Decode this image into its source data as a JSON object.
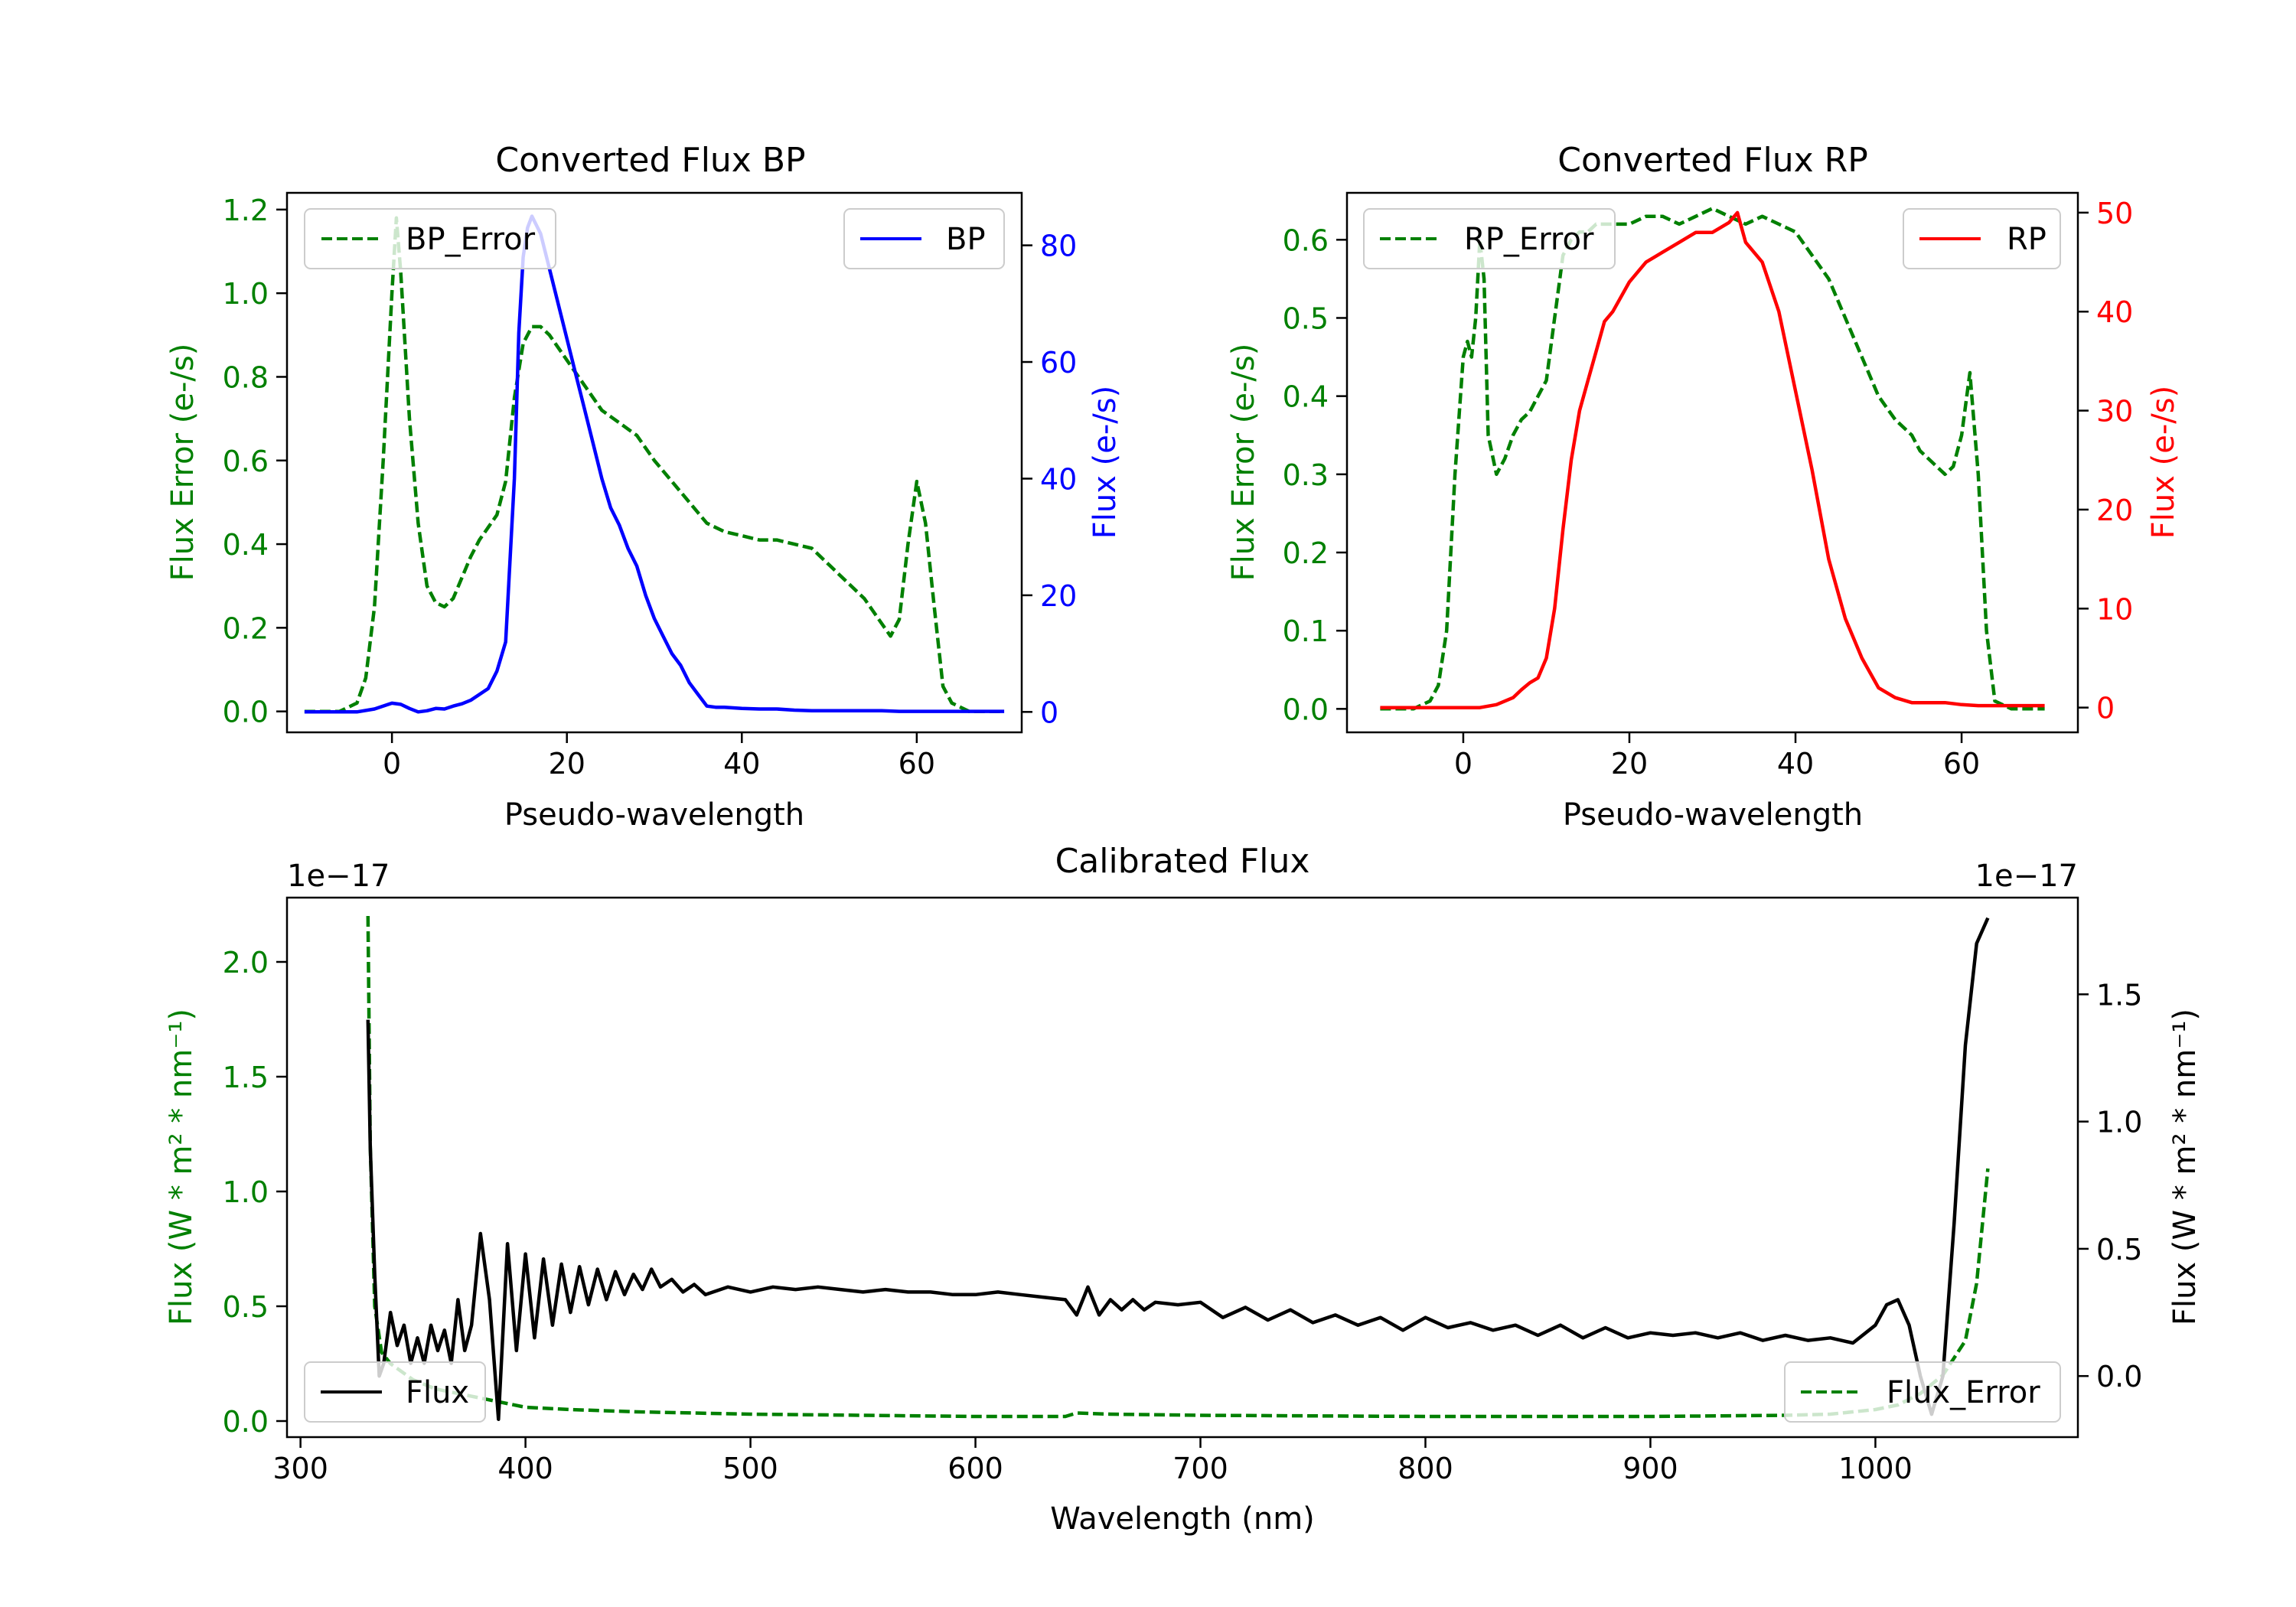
{
  "chart_data": [
    {
      "id": "bp",
      "type": "line",
      "title": "Converted Flux BP",
      "xlabel": "Pseudo-wavelength",
      "ylabel_left": "Flux Error (e-/s)",
      "ylabel_right": "Flux (e-/s)",
      "xlim": [
        -12,
        72
      ],
      "ylim_left": [
        -0.05,
        1.24
      ],
      "ylim_right": [
        -3.5,
        89
      ],
      "xticks": [
        0,
        20,
        40,
        60
      ],
      "yticks_left": [
        "0.0",
        "0.2",
        "0.4",
        "0.6",
        "0.8",
        "1.0",
        "1.2"
      ],
      "yticks_right": [
        "0",
        "20",
        "40",
        "60",
        "80"
      ],
      "colors": {
        "error": "#008000",
        "flux": "#0000ff",
        "left_axis": "#008000",
        "right_axis": "#0000ff"
      },
      "legend_error": "BP_Error",
      "legend_flux": "BP",
      "series": [
        {
          "name": "BP_Error",
          "axis": "left",
          "style": "dashed",
          "color": "#008000",
          "x": [
            -10,
            -8,
            -6,
            -4,
            -3,
            -2,
            -1,
            0,
            0.5,
            1,
            2,
            3,
            4,
            5,
            6,
            7,
            8,
            9,
            10,
            11,
            12,
            13,
            14,
            15,
            16,
            17,
            18,
            19,
            20,
            22,
            24,
            26,
            28,
            30,
            32,
            34,
            36,
            38,
            40,
            42,
            44,
            46,
            48,
            50,
            52,
            54,
            55,
            56,
            57,
            58,
            59,
            60,
            61,
            62,
            63,
            64,
            66,
            68,
            70
          ],
          "y": [
            0,
            0,
            0,
            0.02,
            0.08,
            0.25,
            0.6,
            1.0,
            1.18,
            1.05,
            0.7,
            0.45,
            0.3,
            0.26,
            0.25,
            0.27,
            0.32,
            0.37,
            0.41,
            0.44,
            0.47,
            0.55,
            0.75,
            0.88,
            0.92,
            0.92,
            0.9,
            0.87,
            0.84,
            0.78,
            0.72,
            0.69,
            0.66,
            0.6,
            0.55,
            0.5,
            0.45,
            0.43,
            0.42,
            0.41,
            0.41,
            0.4,
            0.39,
            0.35,
            0.31,
            0.27,
            0.24,
            0.21,
            0.18,
            0.22,
            0.4,
            0.55,
            0.45,
            0.25,
            0.06,
            0.02,
            0,
            0,
            0
          ]
        },
        {
          "name": "BP",
          "axis": "right",
          "style": "solid",
          "color": "#0000ff",
          "x": [
            -10,
            -8,
            -6,
            -4,
            -2,
            0,
            1,
            2,
            3,
            4,
            5,
            6,
            7,
            8,
            9,
            10,
            11,
            12,
            13,
            14,
            14.5,
            15,
            15.5,
            16,
            17,
            18,
            19,
            20,
            21,
            22,
            23,
            24,
            25,
            26,
            27,
            28,
            29,
            30,
            31,
            32,
            33,
            34,
            35,
            36,
            37,
            38,
            40,
            42,
            44,
            46,
            48,
            50,
            52,
            54,
            56,
            58,
            60,
            62,
            64,
            66,
            68,
            70
          ],
          "y": [
            0,
            0,
            0,
            0,
            0.5,
            1.5,
            1.3,
            0.6,
            0,
            0.2,
            0.6,
            0.5,
            1,
            1.4,
            2,
            3,
            4,
            7,
            12,
            40,
            65,
            78,
            83,
            85,
            82,
            76,
            70,
            64,
            58,
            52,
            46,
            40,
            35,
            32,
            28,
            25,
            20,
            16,
            13,
            10,
            8,
            5,
            3,
            1,
            0.8,
            0.8,
            0.6,
            0.5,
            0.5,
            0.3,
            0.2,
            0.2,
            0.2,
            0.2,
            0.2,
            0.1,
            0.1,
            0.1,
            0.1,
            0.1,
            0.1,
            0.1
          ]
        }
      ]
    },
    {
      "id": "rp",
      "type": "line",
      "title": "Converted Flux RP",
      "xlabel": "Pseudo-wavelength",
      "ylabel_left": "Flux Error (e-/s)",
      "ylabel_right": "Flux (e-/s)",
      "xlim": [
        -14,
        74
      ],
      "ylim_left": [
        -0.03,
        0.66
      ],
      "ylim_right": [
        -2.5,
        52
      ],
      "xticks": [
        0,
        20,
        40,
        60
      ],
      "yticks_left": [
        "0.0",
        "0.1",
        "0.2",
        "0.3",
        "0.4",
        "0.5",
        "0.6"
      ],
      "yticks_right": [
        "0",
        "10",
        "20",
        "30",
        "40",
        "50"
      ],
      "colors": {
        "error": "#008000",
        "flux": "#ff0000",
        "left_axis": "#008000",
        "right_axis": "#ff0000"
      },
      "legend_error": "RP_Error",
      "legend_flux": "RP",
      "series": [
        {
          "name": "RP_Error",
          "axis": "left",
          "style": "dashed",
          "color": "#008000",
          "x": [
            -10,
            -6,
            -4,
            -3,
            -2,
            -1,
            0,
            0.5,
            1,
            1.5,
            2,
            2.5,
            3,
            4,
            5,
            6,
            7,
            8,
            9,
            10,
            11,
            12,
            13,
            14,
            15,
            16,
            17,
            18,
            20,
            22,
            24,
            26,
            28,
            30,
            32,
            34,
            36,
            38,
            40,
            42,
            44,
            46,
            48,
            50,
            52,
            54,
            55,
            56,
            57,
            58,
            59,
            60,
            61,
            62,
            63,
            64,
            66,
            68,
            70
          ],
          "y": [
            0,
            0,
            0.01,
            0.03,
            0.1,
            0.3,
            0.45,
            0.47,
            0.45,
            0.5,
            0.6,
            0.55,
            0.35,
            0.3,
            0.32,
            0.35,
            0.37,
            0.38,
            0.4,
            0.42,
            0.5,
            0.58,
            0.6,
            0.61,
            0.61,
            0.62,
            0.62,
            0.62,
            0.62,
            0.63,
            0.63,
            0.62,
            0.63,
            0.64,
            0.63,
            0.62,
            0.63,
            0.62,
            0.61,
            0.58,
            0.55,
            0.5,
            0.45,
            0.4,
            0.37,
            0.35,
            0.33,
            0.32,
            0.31,
            0.3,
            0.31,
            0.35,
            0.43,
            0.3,
            0.1,
            0.01,
            0,
            0,
            0
          ]
        },
        {
          "name": "RP",
          "axis": "right",
          "style": "solid",
          "color": "#ff0000",
          "x": [
            -10,
            -6,
            -4,
            -2,
            0,
            2,
            4,
            6,
            7,
            8,
            9,
            10,
            11,
            12,
            13,
            14,
            15,
            16,
            17,
            18,
            20,
            22,
            24,
            26,
            28,
            30,
            32,
            33,
            34,
            36,
            38,
            40,
            42,
            44,
            46,
            48,
            50,
            52,
            54,
            56,
            58,
            60,
            62,
            64,
            66,
            68,
            70
          ],
          "y": [
            0,
            0,
            0,
            0,
            0,
            0,
            0.3,
            1,
            1.8,
            2.5,
            3,
            5,
            10,
            18,
            25,
            30,
            33,
            36,
            39,
            40,
            43,
            45,
            46,
            47,
            48,
            48,
            49,
            50,
            47,
            45,
            40,
            32,
            24,
            15,
            9,
            5,
            2,
            1,
            0.5,
            0.5,
            0.5,
            0.3,
            0.2,
            0.2,
            0.2,
            0.2,
            0.2
          ]
        }
      ]
    },
    {
      "id": "cal",
      "type": "line",
      "title": "Calibrated Flux",
      "xlabel": "Wavelength (nm)",
      "ylabel_left": "Flux (W * m² * nm⁻¹)",
      "ylabel_right": "Flux (W * m² * nm⁻¹)",
      "offset_left": "1e−17",
      "offset_right": "1e−17",
      "xlim": [
        294,
        1090
      ],
      "ylim_left": [
        -0.07,
        2.28
      ],
      "ylim_right": [
        -0.24,
        1.88
      ],
      "xticks": [
        300,
        400,
        500,
        600,
        700,
        800,
        900,
        1000
      ],
      "yticks_left": [
        "0.0",
        "0.5",
        "1.0",
        "1.5",
        "2.0"
      ],
      "yticks_right": [
        "0.0",
        "0.5",
        "1.0",
        "1.5"
      ],
      "colors": {
        "error": "#008000",
        "flux": "#000000",
        "left_axis": "#008000",
        "right_axis": "#000000"
      },
      "legend_error": "Flux_Error",
      "legend_flux": "Flux",
      "series": [
        {
          "name": "Flux_Error",
          "axis": "left",
          "style": "dashed",
          "color": "#008000",
          "x": [
            330,
            331,
            333,
            336,
            340,
            350,
            360,
            380,
            400,
            420,
            450,
            500,
            550,
            600,
            630,
            640,
            645,
            660,
            700,
            800,
            900,
            960,
            980,
            1000,
            1010,
            1020,
            1030,
            1040,
            1045,
            1050
          ],
          "y": [
            2.2,
            1.2,
            0.5,
            0.3,
            0.25,
            0.18,
            0.14,
            0.1,
            0.06,
            0.05,
            0.04,
            0.03,
            0.025,
            0.02,
            0.02,
            0.02,
            0.035,
            0.03,
            0.025,
            0.02,
            0.02,
            0.025,
            0.03,
            0.05,
            0.07,
            0.12,
            0.2,
            0.35,
            0.6,
            1.1
          ]
        },
        {
          "name": "Flux",
          "axis": "right",
          "style": "solid",
          "color": "#000000",
          "x": [
            330,
            331,
            333,
            335,
            337,
            340,
            343,
            346,
            349,
            352,
            355,
            358,
            361,
            364,
            367,
            370,
            373,
            376,
            380,
            384,
            388,
            392,
            396,
            400,
            404,
            408,
            412,
            416,
            420,
            424,
            428,
            432,
            436,
            440,
            444,
            448,
            452,
            456,
            460,
            465,
            470,
            475,
            480,
            490,
            500,
            510,
            520,
            530,
            540,
            550,
            560,
            570,
            580,
            590,
            600,
            610,
            620,
            630,
            640,
            645,
            650,
            655,
            660,
            665,
            670,
            675,
            680,
            690,
            700,
            710,
            720,
            730,
            740,
            750,
            760,
            770,
            780,
            790,
            800,
            810,
            820,
            830,
            840,
            850,
            860,
            870,
            880,
            890,
            900,
            910,
            920,
            930,
            940,
            950,
            960,
            970,
            980,
            990,
            1000,
            1005,
            1010,
            1015,
            1020,
            1025,
            1030,
            1035,
            1040,
            1045,
            1050
          ],
          "y": [
            1.4,
            0.9,
            0.4,
            0,
            0.05,
            0.25,
            0.12,
            0.2,
            0.05,
            0.15,
            0.05,
            0.2,
            0.1,
            0.18,
            0.05,
            0.3,
            0.1,
            0.2,
            0.56,
            0.3,
            -0.17,
            0.52,
            0.1,
            0.48,
            0.15,
            0.46,
            0.2,
            0.44,
            0.25,
            0.43,
            0.28,
            0.42,
            0.3,
            0.41,
            0.32,
            0.4,
            0.34,
            0.42,
            0.35,
            0.38,
            0.33,
            0.36,
            0.32,
            0.35,
            0.33,
            0.35,
            0.34,
            0.35,
            0.34,
            0.33,
            0.34,
            0.33,
            0.33,
            0.32,
            0.32,
            0.33,
            0.32,
            0.31,
            0.3,
            0.24,
            0.35,
            0.24,
            0.3,
            0.26,
            0.3,
            0.26,
            0.29,
            0.28,
            0.29,
            0.23,
            0.27,
            0.22,
            0.26,
            0.21,
            0.24,
            0.2,
            0.23,
            0.18,
            0.23,
            0.19,
            0.21,
            0.18,
            0.2,
            0.16,
            0.2,
            0.15,
            0.19,
            0.15,
            0.17,
            0.16,
            0.17,
            0.15,
            0.17,
            0.14,
            0.16,
            0.14,
            0.15,
            0.13,
            0.2,
            0.28,
            0.3,
            0.2,
            0.0,
            -0.15,
            0.0,
            0.6,
            1.3,
            1.7,
            1.8
          ]
        }
      ]
    }
  ]
}
